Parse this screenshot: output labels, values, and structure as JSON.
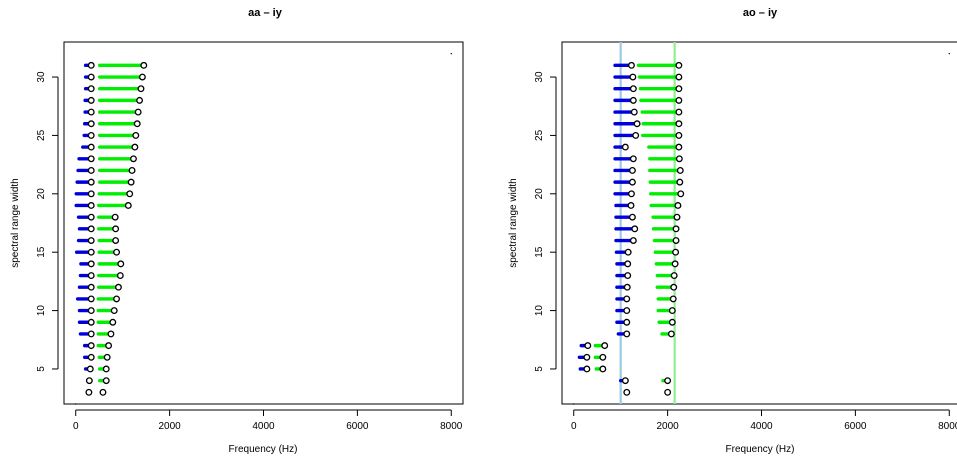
{
  "colors": {
    "low": "#0000dd",
    "high": "#00ee00",
    "vline_low": "#9ec9e2",
    "vline_high": "#90ee90",
    "marker": "#000000"
  },
  "chart_data": [
    {
      "type": "segment-dot",
      "title": "aa – iy",
      "xlabel": "Frequency (Hz)",
      "ylabel": "spectral range width",
      "xlim": [
        -250,
        8250
      ],
      "ylim": [
        2,
        33
      ],
      "xticks": [
        0,
        2000,
        4000,
        6000,
        8000
      ],
      "yticks": [
        5,
        10,
        15,
        20,
        25,
        30
      ],
      "grid": false,
      "vlines": [],
      "corner_points": [
        [
          0,
          2
        ],
        [
          8000,
          32
        ]
      ],
      "rows": [
        {
          "y": 3,
          "low_start": 280,
          "low_end": 280,
          "high_start": 580,
          "high_end": 580
        },
        {
          "y": 4,
          "low_start": 290,
          "low_end": 290,
          "high_start": 510,
          "high_end": 650
        },
        {
          "y": 5,
          "low_start": 210,
          "low_end": 310,
          "high_start": 510,
          "high_end": 650
        },
        {
          "y": 6,
          "low_start": 190,
          "low_end": 330,
          "high_start": 500,
          "high_end": 670
        },
        {
          "y": 7,
          "low_start": 190,
          "low_end": 330,
          "high_start": 480,
          "high_end": 700
        },
        {
          "y": 8,
          "low_start": 100,
          "low_end": 330,
          "high_start": 480,
          "high_end": 750
        },
        {
          "y": 9,
          "low_start": 80,
          "low_end": 330,
          "high_start": 480,
          "high_end": 790
        },
        {
          "y": 10,
          "low_start": 80,
          "low_end": 330,
          "high_start": 480,
          "high_end": 820
        },
        {
          "y": 11,
          "low_start": 40,
          "low_end": 330,
          "high_start": 480,
          "high_end": 870
        },
        {
          "y": 12,
          "low_start": 80,
          "low_end": 330,
          "high_start": 490,
          "high_end": 910
        },
        {
          "y": 13,
          "low_start": 100,
          "low_end": 330,
          "high_start": 490,
          "high_end": 950
        },
        {
          "y": 14,
          "low_start": 110,
          "low_end": 330,
          "high_start": 500,
          "high_end": 960
        },
        {
          "y": 15,
          "low_start": 20,
          "low_end": 330,
          "high_start": 500,
          "high_end": 870
        },
        {
          "y": 16,
          "low_start": 60,
          "low_end": 330,
          "high_start": 500,
          "high_end": 850
        },
        {
          "y": 17,
          "low_start": 80,
          "low_end": 330,
          "high_start": 490,
          "high_end": 850
        },
        {
          "y": 18,
          "low_start": 60,
          "low_end": 330,
          "high_start": 490,
          "high_end": 840
        },
        {
          "y": 19,
          "low_start": 10,
          "low_end": 330,
          "high_start": 490,
          "high_end": 1120
        },
        {
          "y": 20,
          "low_start": 10,
          "low_end": 330,
          "high_start": 500,
          "high_end": 1150
        },
        {
          "y": 21,
          "low_start": 30,
          "low_end": 330,
          "high_start": 510,
          "high_end": 1180
        },
        {
          "y": 22,
          "low_start": 50,
          "low_end": 330,
          "high_start": 510,
          "high_end": 1200
        },
        {
          "y": 23,
          "low_start": 70,
          "low_end": 330,
          "high_start": 510,
          "high_end": 1230
        },
        {
          "y": 24,
          "low_start": 150,
          "low_end": 330,
          "high_start": 510,
          "high_end": 1260
        },
        {
          "y": 25,
          "low_start": 180,
          "low_end": 330,
          "high_start": 510,
          "high_end": 1280
        },
        {
          "y": 26,
          "low_start": 190,
          "low_end": 330,
          "high_start": 510,
          "high_end": 1310
        },
        {
          "y": 27,
          "low_start": 200,
          "low_end": 330,
          "high_start": 510,
          "high_end": 1330
        },
        {
          "y": 28,
          "low_start": 200,
          "low_end": 330,
          "high_start": 510,
          "high_end": 1360
        },
        {
          "y": 29,
          "low_start": 210,
          "low_end": 330,
          "high_start": 510,
          "high_end": 1390
        },
        {
          "y": 30,
          "low_start": 210,
          "low_end": 330,
          "high_start": 510,
          "high_end": 1420
        },
        {
          "y": 31,
          "low_start": 210,
          "low_end": 330,
          "high_start": 510,
          "high_end": 1450
        }
      ]
    },
    {
      "type": "segment-dot",
      "title": "ao – iy",
      "xlabel": "Frequency (Hz)",
      "ylabel": "spectral range width",
      "xlim": [
        -250,
        8250
      ],
      "ylim": [
        2,
        33
      ],
      "xticks": [
        0,
        2000,
        4000,
        6000,
        8000
      ],
      "yticks": [
        5,
        10,
        15,
        20,
        25,
        30
      ],
      "grid": false,
      "vlines": [
        {
          "x": 1000,
          "kind": "low"
        },
        {
          "x": 2150,
          "kind": "high"
        }
      ],
      "corner_points": [
        [
          0,
          2
        ],
        [
          8000,
          32
        ]
      ],
      "rows": [
        {
          "y": 3,
          "low_start": 1130,
          "low_end": 1130,
          "high_start": 2000,
          "high_end": 2000
        },
        {
          "y": 4,
          "low_start": 1000,
          "low_end": 1100,
          "high_start": 1900,
          "high_end": 2000
        },
        {
          "y": 5,
          "low_start": 140,
          "low_end": 280,
          "high_start": 480,
          "high_end": 620
        },
        {
          "y": 6,
          "low_start": 120,
          "low_end": 280,
          "high_start": 460,
          "high_end": 620
        },
        {
          "y": 7,
          "low_start": 160,
          "low_end": 300,
          "high_start": 460,
          "high_end": 660
        },
        {
          "y": 8,
          "low_start": 950,
          "low_end": 1130,
          "high_start": 1880,
          "high_end": 2080
        },
        {
          "y": 9,
          "low_start": 920,
          "low_end": 1130,
          "high_start": 1820,
          "high_end": 2100
        },
        {
          "y": 10,
          "low_start": 920,
          "low_end": 1130,
          "high_start": 1800,
          "high_end": 2100
        },
        {
          "y": 11,
          "low_start": 920,
          "low_end": 1130,
          "high_start": 1800,
          "high_end": 2120
        },
        {
          "y": 12,
          "low_start": 920,
          "low_end": 1140,
          "high_start": 1780,
          "high_end": 2130
        },
        {
          "y": 13,
          "low_start": 920,
          "low_end": 1150,
          "high_start": 1780,
          "high_end": 2140
        },
        {
          "y": 14,
          "low_start": 920,
          "low_end": 1150,
          "high_start": 1760,
          "high_end": 2160
        },
        {
          "y": 15,
          "low_start": 910,
          "low_end": 1160,
          "high_start": 1740,
          "high_end": 2170
        },
        {
          "y": 16,
          "low_start": 900,
          "low_end": 1270,
          "high_start": 1720,
          "high_end": 2180
        },
        {
          "y": 17,
          "low_start": 900,
          "low_end": 1300,
          "high_start": 1700,
          "high_end": 2180
        },
        {
          "y": 18,
          "low_start": 900,
          "low_end": 1250,
          "high_start": 1690,
          "high_end": 2200
        },
        {
          "y": 19,
          "low_start": 900,
          "low_end": 1220,
          "high_start": 1650,
          "high_end": 2220
        },
        {
          "y": 20,
          "low_start": 880,
          "low_end": 1230,
          "high_start": 1640,
          "high_end": 2280
        },
        {
          "y": 21,
          "low_start": 880,
          "low_end": 1250,
          "high_start": 1630,
          "high_end": 2260
        },
        {
          "y": 22,
          "low_start": 880,
          "low_end": 1250,
          "high_start": 1620,
          "high_end": 2270
        },
        {
          "y": 23,
          "low_start": 880,
          "low_end": 1270,
          "high_start": 1620,
          "high_end": 2250
        },
        {
          "y": 24,
          "low_start": 880,
          "low_end": 1100,
          "high_start": 1600,
          "high_end": 2240
        },
        {
          "y": 25,
          "low_start": 880,
          "low_end": 1320,
          "high_start": 1470,
          "high_end": 2240
        },
        {
          "y": 26,
          "low_start": 880,
          "low_end": 1350,
          "high_start": 1480,
          "high_end": 2240
        },
        {
          "y": 27,
          "low_start": 880,
          "low_end": 1290,
          "high_start": 1460,
          "high_end": 2240
        },
        {
          "y": 28,
          "low_start": 880,
          "low_end": 1270,
          "high_start": 1430,
          "high_end": 2240
        },
        {
          "y": 29,
          "low_start": 880,
          "low_end": 1270,
          "high_start": 1420,
          "high_end": 2240
        },
        {
          "y": 30,
          "low_start": 880,
          "low_end": 1260,
          "high_start": 1400,
          "high_end": 2240
        },
        {
          "y": 31,
          "low_start": 880,
          "low_end": 1230,
          "high_start": 1380,
          "high_end": 2240
        }
      ]
    }
  ]
}
